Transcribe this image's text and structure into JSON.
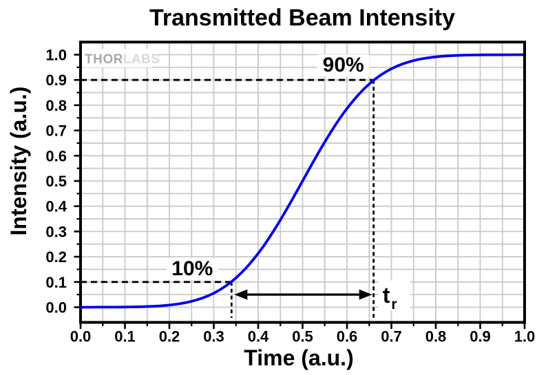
{
  "watermark": {
    "part1": "THOR",
    "part2": "LABS"
  },
  "colors": {
    "curve": "#0000EE",
    "grid": "#c9c9c9",
    "axis": "#000000",
    "dashed": "#000000",
    "watermark_thor": "#a8a8a8",
    "watermark_labs": "#d9d9d9",
    "background": "#ffffff"
  },
  "chart_data": {
    "type": "line",
    "title": "Transmitted Beam Intensity",
    "xlabel": "Time (a.u.)",
    "ylabel": "Intensity (a.u.)",
    "xlim": [
      0,
      1
    ],
    "ylim": [
      -0.06,
      1.05
    ],
    "grid": true,
    "minor_step": 0.05,
    "legend": "none",
    "x_ticks": {
      "values": [
        0,
        0.1,
        0.2,
        0.3,
        0.4,
        0.5,
        0.6,
        0.7,
        0.8,
        0.9,
        1.0
      ],
      "labels": [
        "0.0",
        "0.1",
        "0.2",
        "0.3",
        "0.4",
        "0.5",
        "0.6",
        "0.7",
        "0.8",
        "0.9",
        "1.0"
      ]
    },
    "y_ticks": {
      "values": [
        0,
        0.1,
        0.2,
        0.3,
        0.4,
        0.5,
        0.6,
        0.7,
        0.8,
        0.9,
        1.0
      ],
      "labels": [
        "0.0",
        "0.1",
        "0.2",
        "0.3",
        "0.4",
        "0.5",
        "0.6",
        "0.7",
        "0.8",
        "0.9",
        "1.0"
      ]
    },
    "series": [
      {
        "name": "transmitted beam intensity",
        "color": "#0000EE",
        "x": [
          0,
          0.025,
          0.05,
          0.075,
          0.1,
          0.125,
          0.15,
          0.175,
          0.2,
          0.225,
          0.25,
          0.275,
          0.3,
          0.325,
          0.35,
          0.375,
          0.4,
          0.425,
          0.45,
          0.475,
          0.5,
          0.525,
          0.55,
          0.575,
          0.6,
          0.625,
          0.65,
          0.675,
          0.7,
          0.725,
          0.75,
          0.775,
          0.8,
          0.825,
          0.85,
          0.875,
          0.9,
          0.925,
          0.95,
          0.975,
          1.0
        ],
        "y": [
          0.0,
          0.0001,
          0.0002,
          0.0003,
          0.0007,
          0.0013,
          0.0026,
          0.0047,
          0.0082,
          0.0139,
          0.0228,
          0.0359,
          0.0548,
          0.0808,
          0.1151,
          0.1587,
          0.2119,
          0.2743,
          0.3446,
          0.4207,
          0.5,
          0.5793,
          0.6554,
          0.7257,
          0.7881,
          0.8413,
          0.8849,
          0.9192,
          0.9452,
          0.9641,
          0.9772,
          0.9861,
          0.9918,
          0.9953,
          0.9974,
          0.9987,
          0.9993,
          0.9997,
          0.9998,
          0.9999,
          1.0
        ]
      }
    ],
    "annotations": {
      "low": {
        "label": "10%",
        "level": 0.1,
        "time": 0.34
      },
      "high": {
        "label": "90%",
        "level": 0.9,
        "time": 0.66
      },
      "rise_time_label": {
        "main": "t",
        "sub": "r"
      },
      "arrow_level": 0.05,
      "rise_time": 0.32
    }
  }
}
